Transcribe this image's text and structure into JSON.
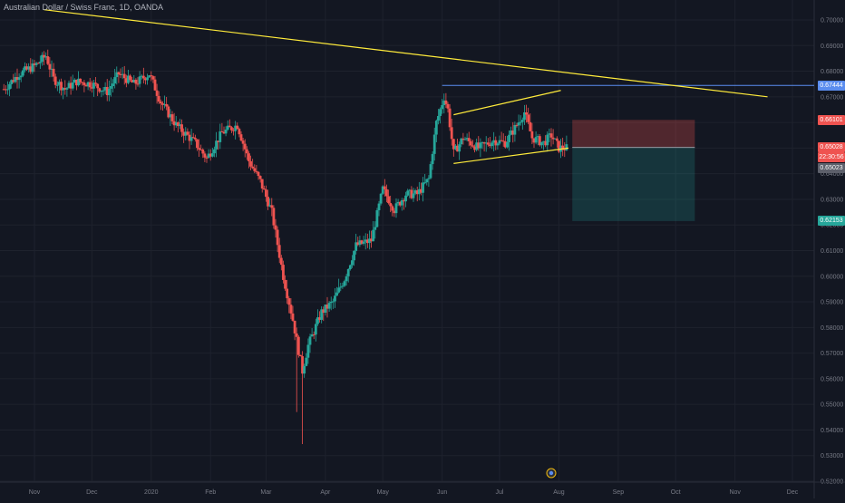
{
  "header": {
    "title": "Australian Dollar / Swiss Franc, 1D, OANDA"
  },
  "colors": {
    "background": "#131722",
    "grid": "#1e222d",
    "axis_text": "#787b86",
    "up": "#26a69a",
    "down": "#ef5350",
    "trendline": "#ffeb3b",
    "horizontal_line": "#5b8def",
    "stop_zone": "#ef5350",
    "target_zone": "#26a69a"
  },
  "price_tags": {
    "horizontal_level": "0.67444",
    "stop": "0.66101",
    "current": "0.65028",
    "countdown": "22:30:56",
    "bid": "0.65023",
    "target": "0.62153"
  },
  "chart_data": {
    "type": "candlestick",
    "title": "Australian Dollar / Swiss Franc, 1D, OANDA",
    "xlabel": "",
    "ylabel": "",
    "ylim": [
      0.52,
      0.705
    ],
    "grid": true,
    "y_ticks": [
      "0.70000",
      "0.69000",
      "0.68000",
      "0.67000",
      "0.66000",
      "0.65000",
      "0.64000",
      "0.63000",
      "0.62000",
      "0.61000",
      "0.60000",
      "0.59000",
      "0.58000",
      "0.57000",
      "0.56000",
      "0.55000",
      "0.54000",
      "0.53000",
      "0.52000"
    ],
    "x_ticks": [
      {
        "label": "Nov",
        "day": 0
      },
      {
        "label": "Dec",
        "day": 30
      },
      {
        "label": "2020",
        "day": 61
      },
      {
        "label": "Feb",
        "day": 92
      },
      {
        "label": "Mar",
        "day": 121
      },
      {
        "label": "Apr",
        "day": 152
      },
      {
        "label": "May",
        "day": 182
      },
      {
        "label": "Jun",
        "day": 213
      },
      {
        "label": "Jul",
        "day": 243
      },
      {
        "label": "Aug",
        "day": 274
      },
      {
        "label": "Sep",
        "day": 305
      },
      {
        "label": "Oct",
        "day": 335
      },
      {
        "label": "Nov",
        "day": 366
      },
      {
        "label": "Dec",
        "day": 396
      }
    ],
    "close_path": [
      {
        "day": -16,
        "close": 0.673
      },
      {
        "day": -8,
        "close": 0.679
      },
      {
        "day": 0,
        "close": 0.682
      },
      {
        "day": 6,
        "close": 0.686
      },
      {
        "day": 10,
        "close": 0.677
      },
      {
        "day": 16,
        "close": 0.673
      },
      {
        "day": 22,
        "close": 0.676
      },
      {
        "day": 30,
        "close": 0.675
      },
      {
        "day": 38,
        "close": 0.672
      },
      {
        "day": 44,
        "close": 0.679
      },
      {
        "day": 52,
        "close": 0.675
      },
      {
        "day": 60,
        "close": 0.679
      },
      {
        "day": 66,
        "close": 0.668
      },
      {
        "day": 74,
        "close": 0.659
      },
      {
        "day": 84,
        "close": 0.652
      },
      {
        "day": 90,
        "close": 0.646
      },
      {
        "day": 98,
        "close": 0.656
      },
      {
        "day": 106,
        "close": 0.659
      },
      {
        "day": 112,
        "close": 0.645
      },
      {
        "day": 118,
        "close": 0.637
      },
      {
        "day": 124,
        "close": 0.625
      },
      {
        "day": 130,
        "close": 0.6
      },
      {
        "day": 135,
        "close": 0.583
      },
      {
        "day": 140,
        "close": 0.563
      },
      {
        "day": 143,
        "close": 0.573
      },
      {
        "day": 150,
        "close": 0.586
      },
      {
        "day": 156,
        "close": 0.59
      },
      {
        "day": 162,
        "close": 0.599
      },
      {
        "day": 168,
        "close": 0.612
      },
      {
        "day": 176,
        "close": 0.614
      },
      {
        "day": 182,
        "close": 0.634
      },
      {
        "day": 188,
        "close": 0.626
      },
      {
        "day": 194,
        "close": 0.632
      },
      {
        "day": 200,
        "close": 0.632
      },
      {
        "day": 206,
        "close": 0.638
      },
      {
        "day": 210,
        "close": 0.66
      },
      {
        "day": 214,
        "close": 0.67
      },
      {
        "day": 216,
        "close": 0.665
      },
      {
        "day": 219,
        "close": 0.648
      },
      {
        "day": 224,
        "close": 0.654
      },
      {
        "day": 232,
        "close": 0.65
      },
      {
        "day": 240,
        "close": 0.653
      },
      {
        "day": 246,
        "close": 0.652
      },
      {
        "day": 252,
        "close": 0.659
      },
      {
        "day": 256,
        "close": 0.664
      },
      {
        "day": 260,
        "close": 0.654
      },
      {
        "day": 266,
        "close": 0.652
      },
      {
        "day": 270,
        "close": 0.655
      },
      {
        "day": 274,
        "close": 0.65
      },
      {
        "day": 278,
        "close": 0.65
      }
    ],
    "special_lows": [
      {
        "day": 140,
        "low": 0.5345
      },
      {
        "day": 137,
        "low": 0.547
      }
    ],
    "drawings": {
      "long_trendline": {
        "points": [
          {
            "day": 5,
            "price": 0.704
          },
          {
            "day": 383,
            "price": 0.67
          }
        ]
      },
      "horizontal_level": {
        "price": 0.67444,
        "from_day": 213
      },
      "channel_upper": {
        "points": [
          {
            "day": 219,
            "price": 0.663
          },
          {
            "day": 275,
            "price": 0.6725
          }
        ]
      },
      "channel_lower": {
        "points": [
          {
            "day": 219,
            "price": 0.644
          },
          {
            "day": 279,
            "price": 0.65
          }
        ]
      },
      "stop_zone": {
        "from_day": 281,
        "to_day": 345,
        "top": 0.66101,
        "bottom": 0.65028
      },
      "target_zone": {
        "from_day": 281,
        "to_day": 345,
        "top": 0.65028,
        "bottom": 0.62153
      }
    }
  }
}
